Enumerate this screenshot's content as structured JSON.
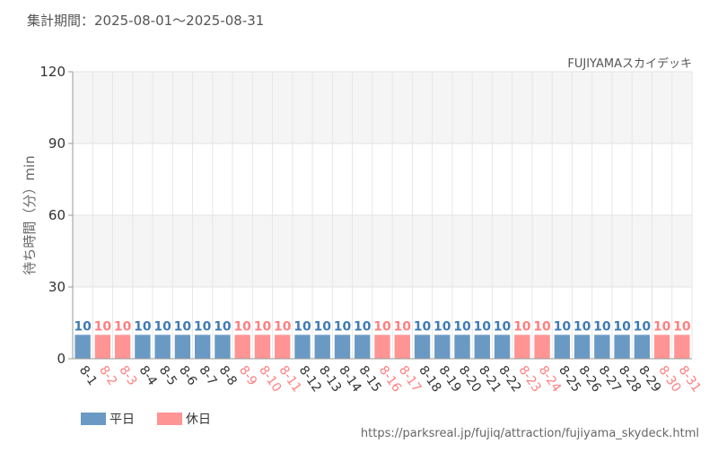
{
  "header": {
    "period_label": "集計期間：2025-08-01～2025-08-31",
    "attraction_name": "FUJIYAMAスカイデッキ"
  },
  "legend": {
    "weekday_label": "平日",
    "holiday_label": "休日"
  },
  "footer": {
    "source_url": "https://parksreal.jp/fujiq/attraction/fujiyama_skydeck.html"
  },
  "colors": {
    "weekday": "#6a9ac4",
    "holiday": "#ff9494",
    "weekday_text": "#3f7bb3",
    "holiday_text": "#ff7f7f"
  },
  "chart_data": {
    "type": "bar",
    "title": "FUJIYAMAスカイデッキ",
    "xlabel": "",
    "ylabel": "待ち時間（分）min",
    "ylim": [
      0,
      120
    ],
    "yticks": [
      0,
      30,
      60,
      90,
      120
    ],
    "grid": true,
    "legend_position": "bottom-left",
    "categories": [
      "8-1",
      "8-2",
      "8-3",
      "8-4",
      "8-5",
      "8-6",
      "8-7",
      "8-8",
      "8-9",
      "8-10",
      "8-11",
      "8-12",
      "8-13",
      "8-14",
      "8-15",
      "8-16",
      "8-17",
      "8-18",
      "8-19",
      "8-20",
      "8-21",
      "8-22",
      "8-23",
      "8-24",
      "8-25",
      "8-26",
      "8-27",
      "8-28",
      "8-29",
      "8-30",
      "8-31"
    ],
    "values": [
      10,
      10,
      10,
      10,
      10,
      10,
      10,
      10,
      10,
      10,
      10,
      10,
      10,
      10,
      10,
      10,
      10,
      10,
      10,
      10,
      10,
      10,
      10,
      10,
      10,
      10,
      10,
      10,
      10,
      10,
      10
    ],
    "day_type": [
      "平日",
      "休日",
      "休日",
      "平日",
      "平日",
      "平日",
      "平日",
      "平日",
      "休日",
      "休日",
      "休日",
      "平日",
      "平日",
      "平日",
      "平日",
      "休日",
      "休日",
      "平日",
      "平日",
      "平日",
      "平日",
      "平日",
      "休日",
      "休日",
      "平日",
      "平日",
      "平日",
      "平日",
      "平日",
      "休日",
      "休日"
    ],
    "data_labels": [
      "10",
      "10",
      "10",
      "10",
      "10",
      "10",
      "10",
      "10",
      "10",
      "10",
      "10",
      "10",
      "10",
      "10",
      "10",
      "10",
      "10",
      "10",
      "10",
      "10",
      "10",
      "10",
      "10",
      "10",
      "10",
      "10",
      "10",
      "10",
      "10",
      "10",
      "10"
    ]
  }
}
